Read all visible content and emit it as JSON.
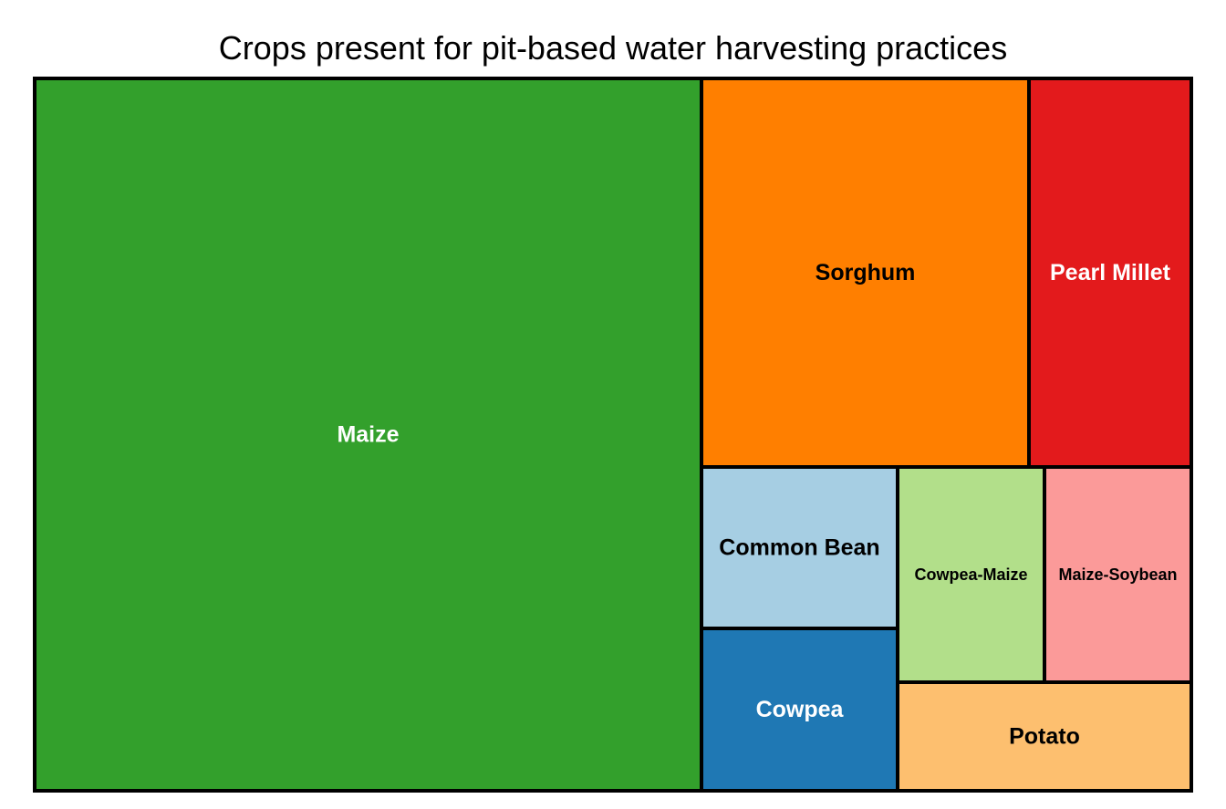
{
  "chart_data": {
    "type": "treemap",
    "title": "Crops present for pit-based water harvesting practices",
    "cells": [
      {
        "label": "Maize",
        "value": 1106,
        "color": "#33a02c",
        "label_color": "#ffffff"
      },
      {
        "label": "Sorghum",
        "value": 297,
        "color": "#ff7f00",
        "label_color": "#000000"
      },
      {
        "label": "Pearl Millet",
        "value": 147,
        "color": "#e31a1c",
        "label_color": "#ffffff"
      },
      {
        "label": "Common Bean",
        "value": 72,
        "color": "#a6cee3",
        "label_color": "#000000"
      },
      {
        "label": "Cowpea",
        "value": 72,
        "color": "#1f78b4",
        "label_color": "#ffffff"
      },
      {
        "label": "Cowpea-Maize",
        "value": 72,
        "color": "#b2df8a",
        "label_color": "#000000"
      },
      {
        "label": "Maize-Soybean",
        "value": 72,
        "color": "#fb9a99",
        "label_color": "#000000"
      },
      {
        "label": "Potato",
        "value": 72,
        "color": "#fdbf6f",
        "label_color": "#000000"
      }
    ]
  }
}
